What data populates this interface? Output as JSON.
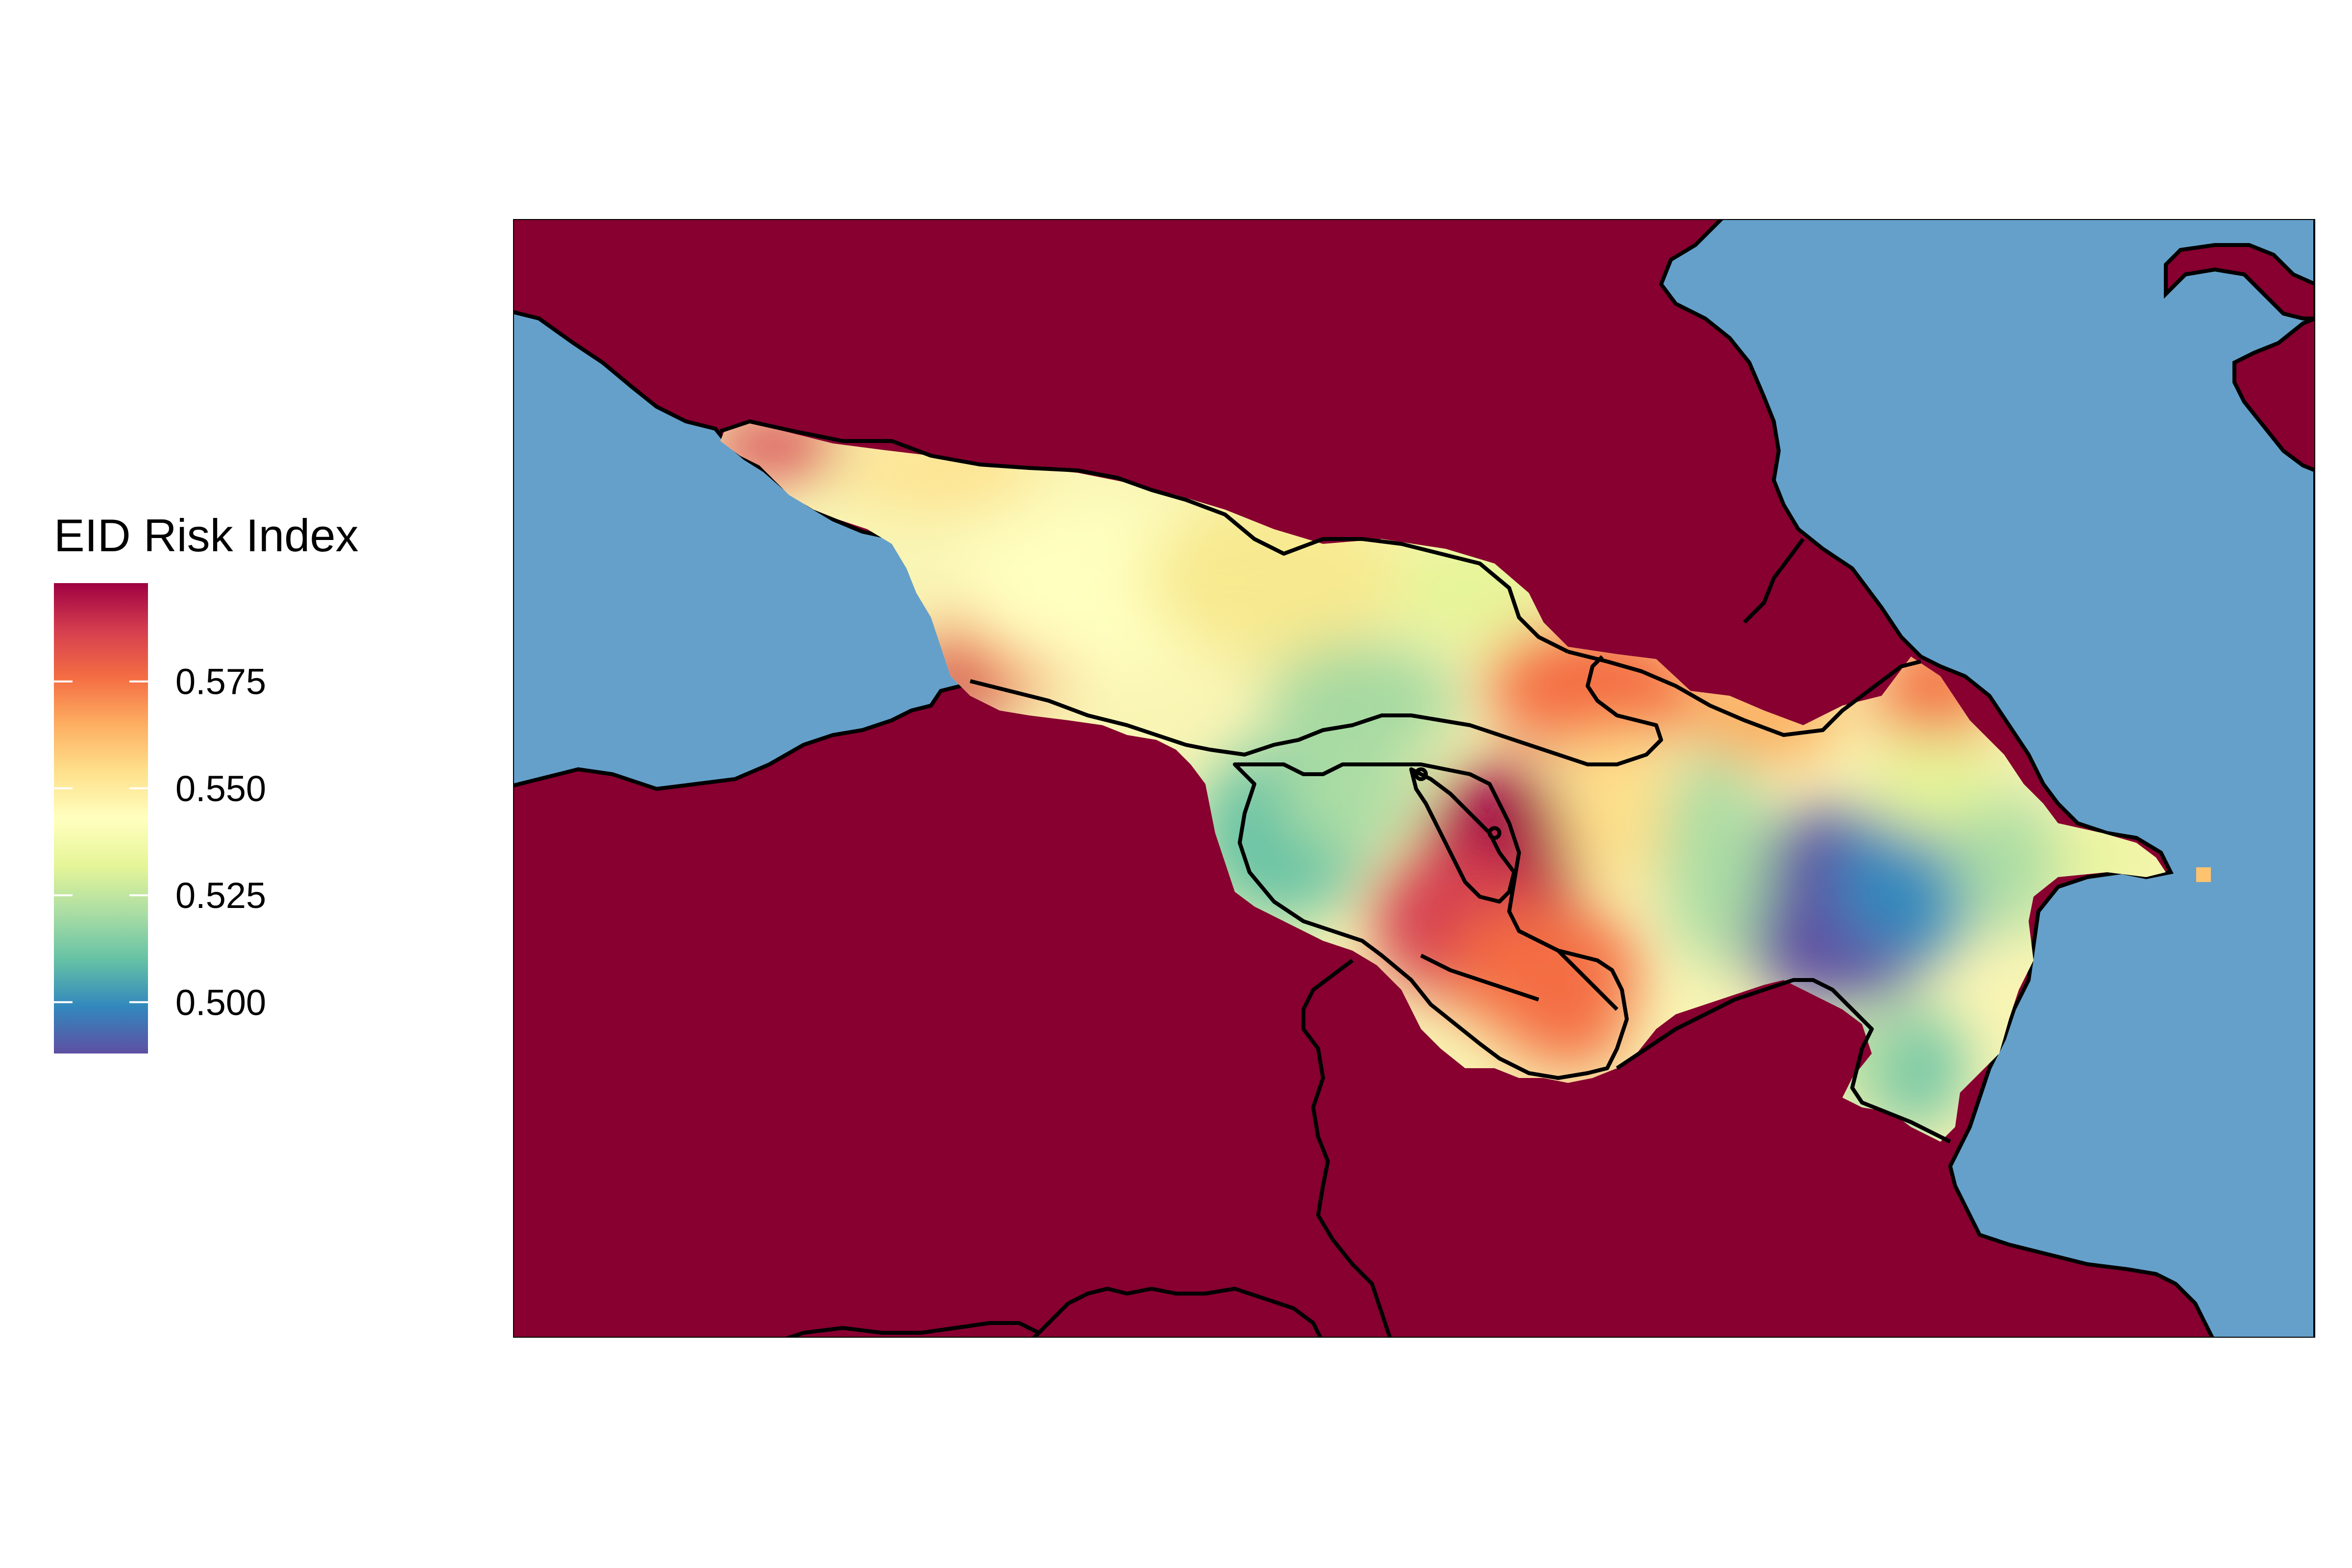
{
  "legend": {
    "title": "EID Risk Index",
    "ticks": [
      {
        "value": 0.575,
        "label": "0.575"
      },
      {
        "value": 0.55,
        "label": "0.550"
      },
      {
        "value": 0.525,
        "label": "0.525"
      },
      {
        "value": 0.5,
        "label": "0.500"
      }
    ],
    "min": 0.488,
    "max": 0.598,
    "palette": [
      "#5E4FA2",
      "#3288BD",
      "#66C2A5",
      "#ABDDA4",
      "#E6F598",
      "#FFFFBF",
      "#FEE08B",
      "#FDAE61",
      "#F46D43",
      "#D53E4F",
      "#9E0142"
    ]
  },
  "map": {
    "region": "South Caucasus (Georgia, Armenia, Azerbaijan)",
    "background_land_color": "#87002F",
    "water_color": "#65A0CA",
    "border_color": "#000000",
    "water_bodies": [
      "Black Sea",
      "Caspian Sea"
    ],
    "risk_hotspots": [
      {
        "area": "western Georgia coast",
        "value": 0.585
      },
      {
        "area": "central Georgia",
        "value": 0.545
      },
      {
        "area": "south Georgia / north Armenia",
        "value": 0.52
      },
      {
        "area": "Armenia (Lake Sevan area)",
        "value": 0.595
      },
      {
        "area": "southern Armenia",
        "value": 0.57
      },
      {
        "area": "central Azerbaijan (Kura lowland)",
        "value": 0.495
      },
      {
        "area": "Absheron peninsula",
        "value": 0.545
      }
    ]
  }
}
